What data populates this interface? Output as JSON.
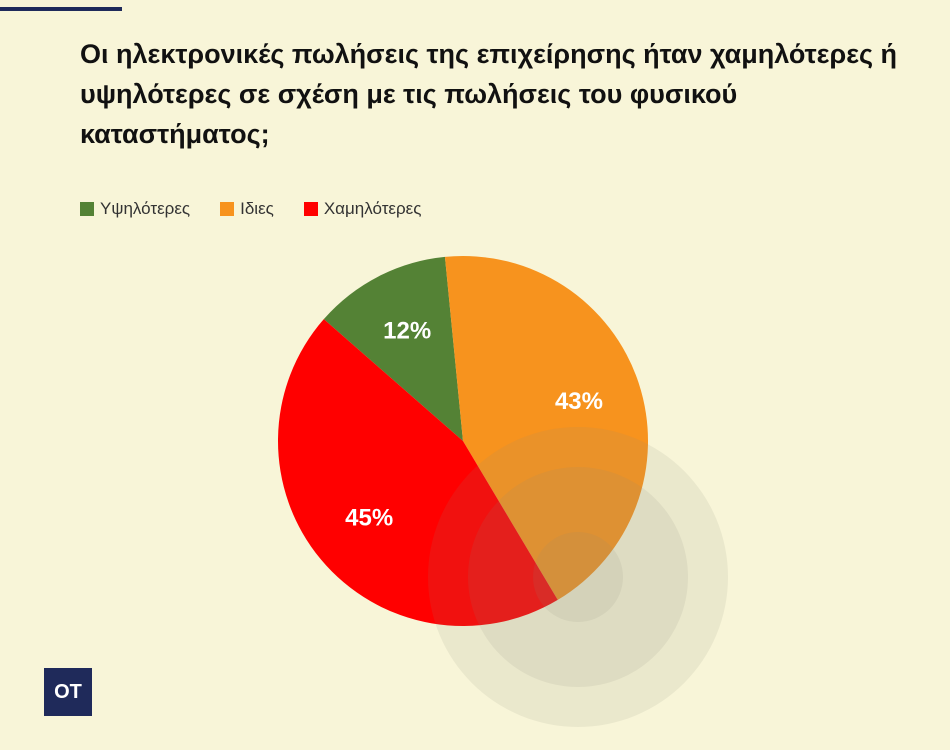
{
  "chart_data": {
    "type": "pie",
    "title": "Οι ηλεκτρονικές πωλήσεις της επιχείρησης ήταν χαμηλότερες ή υψηλότερες σε σχέση με τις πωλήσεις του φυσικού καταστήματος;",
    "categories": [
      "Υψηλότερες",
      "Ιδιες",
      "Χαμηλότερες"
    ],
    "values": [
      12,
      43,
      45
    ],
    "value_labels": [
      "12%",
      "43%",
      "45%"
    ],
    "colors": [
      "#548235",
      "#f7931e",
      "#ff0000"
    ]
  },
  "logo": "OT"
}
